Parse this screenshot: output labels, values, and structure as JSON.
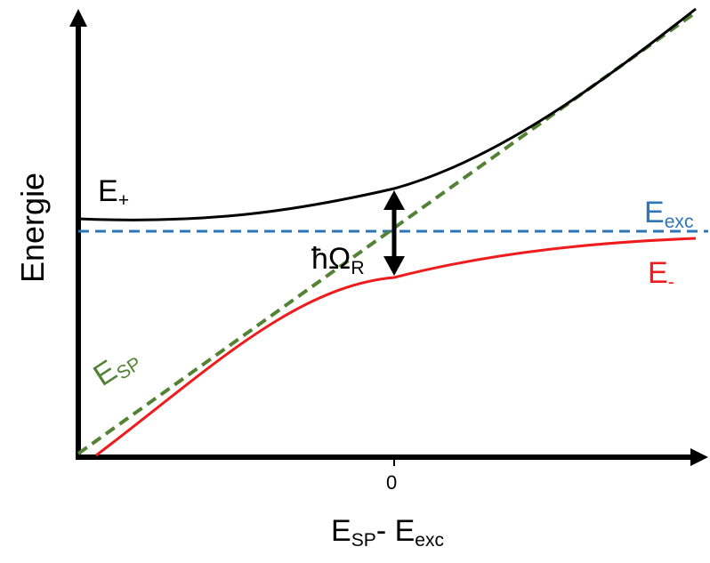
{
  "axes": {
    "ylabel": "Energie",
    "xlabel_main": "E",
    "xlabel_sub1": "SP",
    "xlabel_mid": "- E",
    "xlabel_sub2": "exc",
    "x_tick": "0"
  },
  "curves": {
    "upper": {
      "main": "E",
      "sub": "+",
      "color": "#000000"
    },
    "lower": {
      "main": "E",
      "sub": "-",
      "color": "#ee1c1c"
    },
    "exciton": {
      "main": "E",
      "sub": "exc",
      "color": "#2e75b6",
      "style": "dashed"
    },
    "plasmon": {
      "main": "E",
      "sub": "SP",
      "color": "#548235",
      "style": "dashed"
    }
  },
  "rabi": {
    "main": "ħΩ",
    "sub": "R"
  }
}
